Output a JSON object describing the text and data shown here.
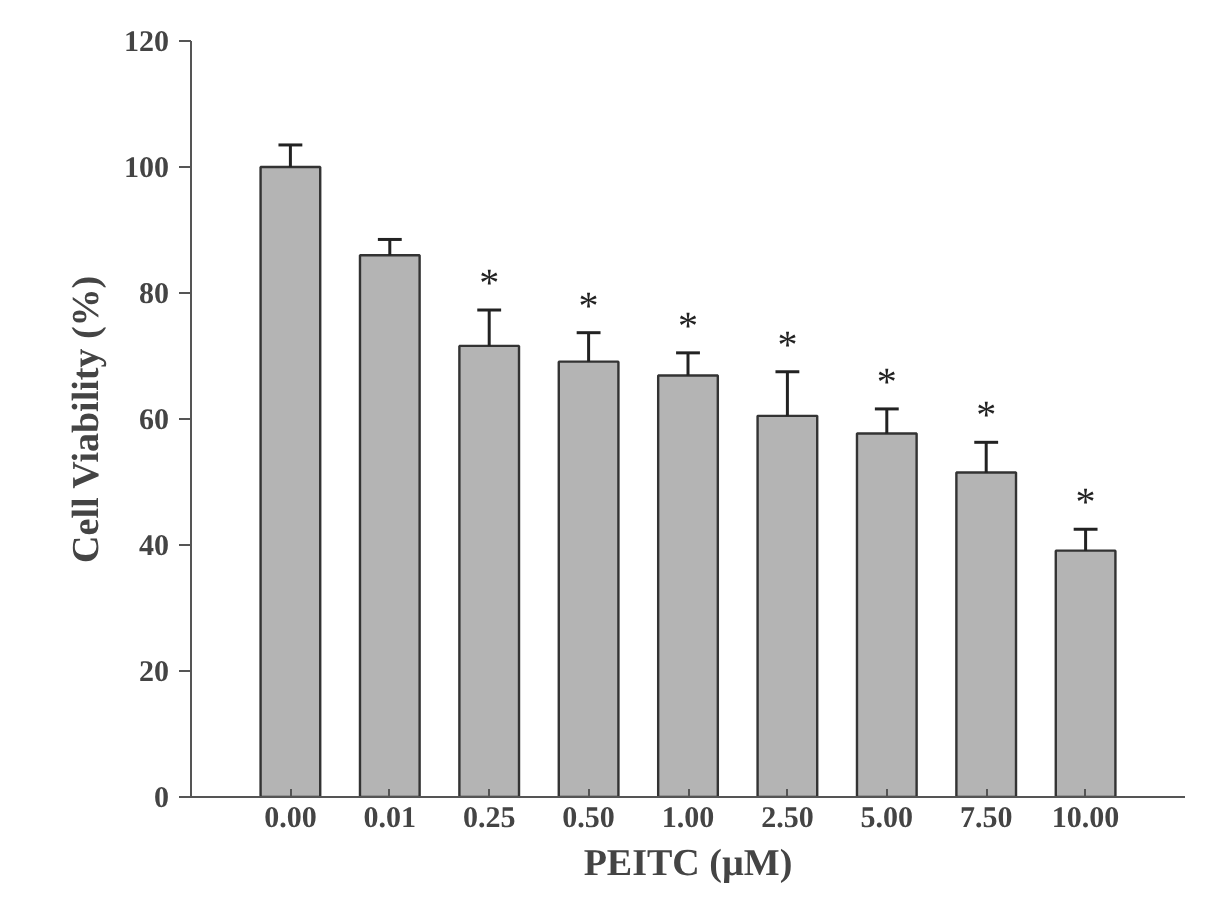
{
  "chart_data": {
    "type": "bar",
    "xlabel": "PEITC (µM)",
    "ylabel": "Cell Viability (%)",
    "categories": [
      "0.00",
      "0.01",
      "0.25",
      "0.50",
      "1.00",
      "2.50",
      "5.00",
      "7.50",
      "10.00"
    ],
    "values": [
      100,
      86,
      71.6,
      69.1,
      66.9,
      60.5,
      57.7,
      51.5,
      39.1
    ],
    "errors": [
      [
        100,
        103.5
      ],
      [
        86,
        88.5
      ],
      [
        71.6,
        77.3
      ],
      [
        69.1,
        73.7
      ],
      [
        66.9,
        70.5
      ],
      [
        60.5,
        67.5
      ],
      [
        57.7,
        61.6
      ],
      [
        51.5,
        56.3
      ],
      [
        39.1,
        42.5
      ]
    ],
    "color": "#b4b4b4",
    "ylim": [
      0,
      120
    ],
    "yticks": [
      0,
      20,
      40,
      60,
      80,
      100,
      120
    ],
    "grid": false,
    "annotations": [
      {
        "text": "*",
        "x": "0.25",
        "y": 77.3
      },
      {
        "text": "*",
        "x": "0.50",
        "y": 73.7
      },
      {
        "text": "*",
        "x": "1.00",
        "y": 70.5
      },
      {
        "text": "*",
        "x": "2.50",
        "y": 67.5
      },
      {
        "text": "*",
        "x": "5.00",
        "y": 61.6
      },
      {
        "text": "*",
        "x": "7.50",
        "y": 56.3
      },
      {
        "text": "*",
        "x": "10.00",
        "y": 42.5
      }
    ]
  }
}
